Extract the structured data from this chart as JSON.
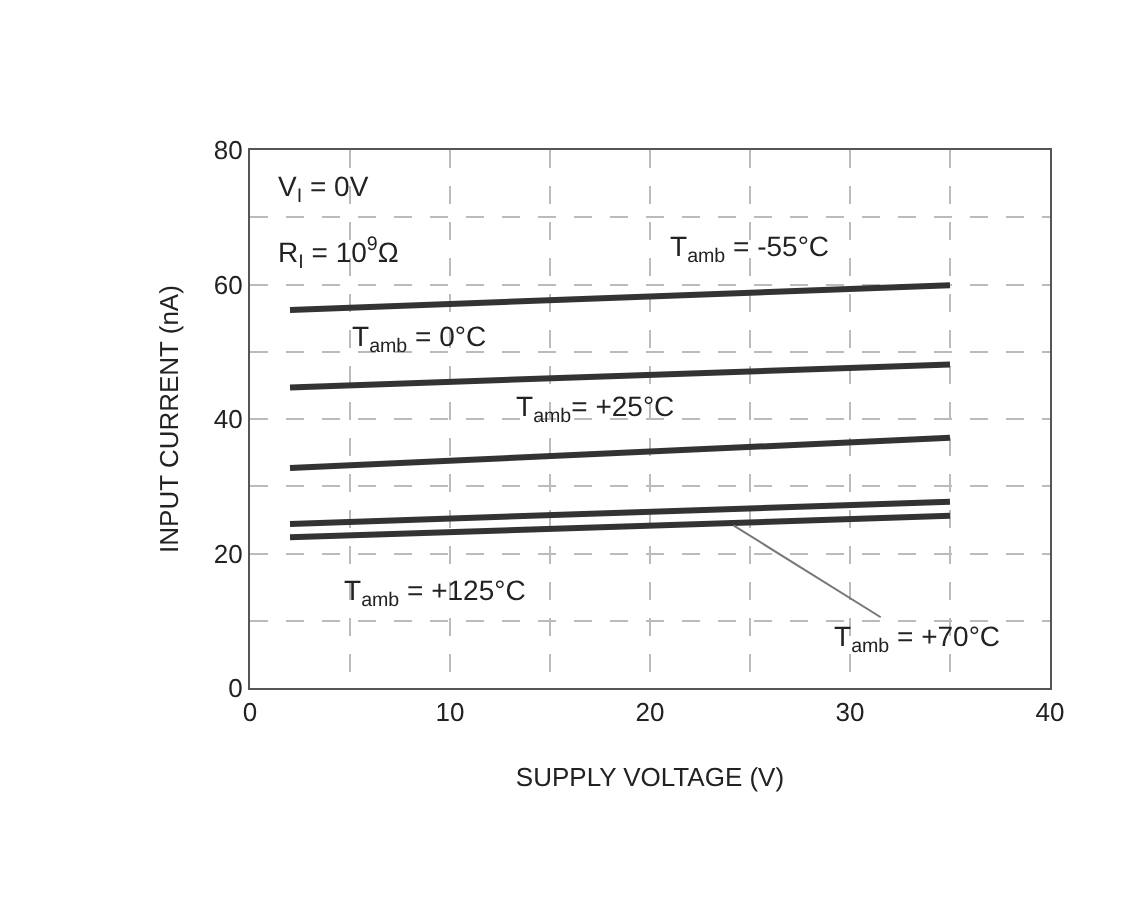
{
  "chart_data": {
    "type": "line",
    "xlabel": "SUPPLY VOLTAGE (V)",
    "ylabel": "INPUT CURRENT (nA)",
    "x": [
      2,
      35
    ],
    "series": [
      {
        "color": "#333333",
        "values": [
          56.2,
          59.9
        ]
      },
      {
        "color": "#333333",
        "values": [
          44.7,
          48.1
        ]
      },
      {
        "color": "#333333",
        "values": [
          32.7,
          37.2
        ]
      },
      {
        "color": "#333333",
        "values": [
          24.4,
          27.7
        ]
      },
      {
        "color": "#333333",
        "values": [
          22.4,
          25.6
        ]
      }
    ],
    "xlim": [
      0,
      40
    ],
    "ylim": [
      0,
      80
    ],
    "xticks": [
      0,
      {
        "value": 5,
        "label": null
      },
      10,
      {
        "value": 15,
        "label": null
      },
      20,
      {
        "value": 25,
        "label": null
      },
      30,
      {
        "value": 35,
        "label": null
      },
      40
    ],
    "yticks": [
      0,
      {
        "value": 10,
        "label": null
      },
      20,
      {
        "value": 30,
        "label": null
      },
      40,
      {
        "value": 50,
        "label": null
      },
      60,
      {
        "value": 70,
        "label": null
      },
      80
    ],
    "grid": true,
    "marker": "none",
    "line_style": "solid",
    "annotations": [
      "V$_{I}$ = 0V",
      "R$_{I}$ = 10$^{9}$Ω",
      {
        "text": "T$_{amb}$ = -55°C",
        "x": 25,
        "y": 58.8
      },
      {
        "text": "T$_{amb}$ = 0°C",
        "x": 8.4,
        "y": 45.4
      },
      {
        "text": "T$_{amb}$= +25°C",
        "x": 17.2,
        "y": 34.8
      },
      {
        "text": "T$_{amb}$ = +125°C",
        "x": 9.2,
        "y": 23.1
      },
      {
        "text": "T$_{amb}$ = +70°C",
        "x": 24,
        "y": 24.5
      }
    ]
  }
}
